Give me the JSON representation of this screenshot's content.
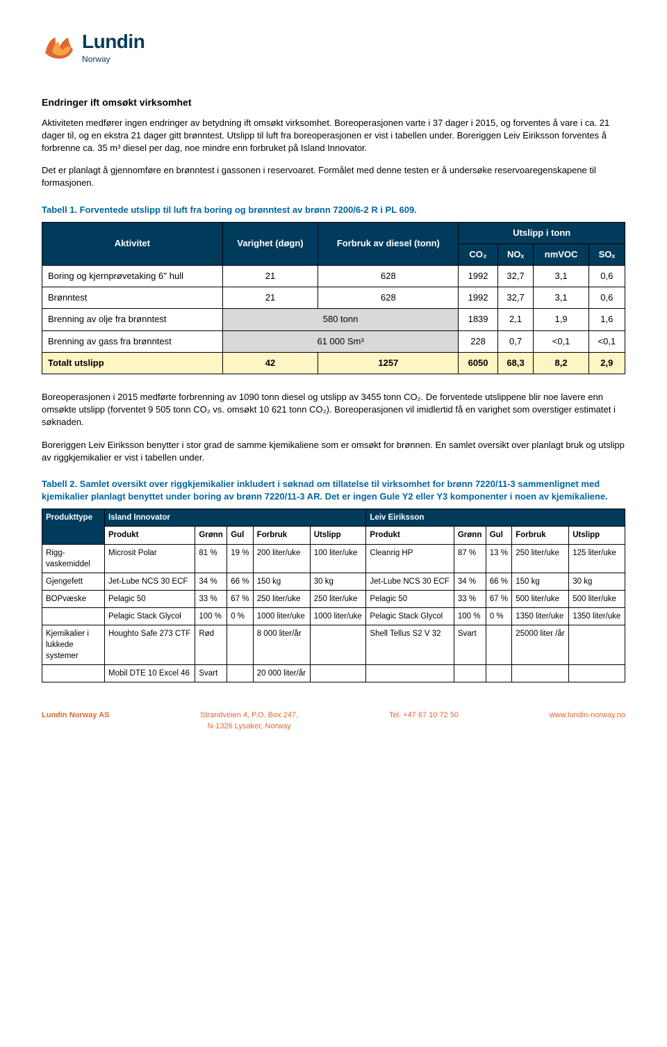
{
  "logo": {
    "main": "Lundin",
    "sub": "Norway"
  },
  "heading1": "Endringer ift omsøkt virksomhet",
  "para1": "Aktiviteten medfører ingen endringer av betydning ift omsøkt virksomhet. Boreoperasjonen varte i 37 dager i 2015, og forventes å vare i ca. 21 dager til, og en ekstra 21 dager gitt brønntest. Utslipp til luft fra boreoperasjonen er vist i tabellen under. Boreriggen Leiv Eiriksson forventes å forbrenne ca. 35 m³ diesel per dag, noe mindre enn forbruket på Island Innovator.",
  "para2": "Det er planlagt å gjennomføre en brønntest i gassonen i reservoaret. Formålet med denne testen er å undersøke reservoaregenskapene til formasjonen.",
  "tab1_caption": "Tabell 1. Forventede utslipp til luft fra boring og brønntest av brønn 7200/6-2 R i PL 609.",
  "t1": {
    "h_activity": "Aktivitet",
    "h_duration": "Varighet (døgn)",
    "h_diesel": "Forbruk av diesel (tonn)",
    "h_emis": "Utslipp i tonn",
    "h_co2": "CO₂",
    "h_nox": "NOₓ",
    "h_nmvoc": "nmVOC",
    "h_sox": "SOₓ",
    "r1": [
      "Boring og kjernprøvetaking 6'' hull",
      "21",
      "628",
      "1992",
      "32,7",
      "3,1",
      "0,6"
    ],
    "r2": [
      "Brønntest",
      "21",
      "628",
      "1992",
      "32,7",
      "3,1",
      "0,6"
    ],
    "r3": [
      "Brenning av olje fra brønntest",
      "580 tonn",
      "1839",
      "2,1",
      "1,9",
      "1,6"
    ],
    "r4": [
      "Brenning av gass fra brønntest",
      "61 000 Sm³",
      "228",
      "0,7",
      "<0,1",
      "<0,1"
    ],
    "r5": [
      "Totalt utslipp",
      "42",
      "1257",
      "6050",
      "68,3",
      "8,2",
      "2,9"
    ]
  },
  "para3": "Boreoperasjonen i 2015 medførte forbrenning av 1090 tonn diesel og utslipp av 3455 tonn CO₂. De forventede utslippene blir noe lavere enn omsøkte utslipp (forventet 9 505 tonn CO₂ vs. omsøkt 10 621 tonn CO₂). Boreoperasjonen vil imidlertid få en varighet som overstiger estimatet i søknaden.",
  "para4": "Boreriggen Leiv Eiriksson benytter i stor grad de samme kjemikaliene som er omsøkt for brønnen. En samlet oversikt over planlagt bruk og utslipp av riggkjemikalier er vist i tabellen under.",
  "tab2_caption": "Tabell 2. Samlet oversikt over riggkjemikalier inkludert i søknad om tillatelse til virksomhet for brønn 7220/11-3 sammenlignet med kjemikalier planlagt benyttet under boring av brønn 7220/11-3 AR. Det er ingen Gule Y2 eller Y3 komponenter i noen av kjemikaliene.",
  "t2": {
    "h_type": "Produkttype",
    "h_ii": "Island Innovator",
    "h_le": "Leiv Eiriksson",
    "sub": [
      "Produkt",
      "Grønn",
      "Gul",
      "Forbruk",
      "Utslipp",
      "Produkt",
      "Grønn",
      "Gul",
      "Forbruk",
      "Utslipp"
    ],
    "rows": [
      {
        "type": "Rigg-vaskemiddel",
        "c": [
          "Microsit Polar",
          "81 %",
          "19 %",
          "200 liter/uke",
          "100 liter/uke",
          "Cleanrig HP",
          "87 %",
          "13 %",
          "250 liter/uke",
          "125 liter/uke"
        ]
      },
      {
        "type": "Gjengefett",
        "c": [
          "Jet-Lube NCS 30 ECF",
          "34 %",
          "66 %",
          "150 kg",
          "30 kg",
          "Jet-Lube NCS 30 ECF",
          "34 %",
          "66 %",
          "150 kg",
          "30 kg"
        ]
      },
      {
        "type": "BOPvæske",
        "c": [
          "Pelagic 50",
          "33 %",
          "67 %",
          "250 liter/uke",
          "250 liter/uke",
          "Pelagic 50",
          "33 %",
          "67 %",
          "500 liter/uke",
          "500 liter/uke"
        ]
      },
      {
        "type": "",
        "c": [
          "Pelagic Stack Glycol",
          "100 %",
          "0 %",
          "1000 liter/uke",
          "1000 liter/uke",
          "Pelagic Stack Glycol",
          "100 %",
          "0 %",
          "1350 liter/uke",
          "1350 liter/uke"
        ]
      },
      {
        "type": "Kjemikalier i lukkede systemer",
        "c": [
          "Houghto Safe 273 CTF",
          "Rød",
          "",
          "8 000 liter/år",
          "",
          "Shell Tellus S2 V 32",
          "Svart",
          "",
          "25000 liter /år",
          ""
        ]
      },
      {
        "type": "",
        "c": [
          "Mobil DTE 10 Excel 46",
          "Svart",
          "",
          "20 000 liter/år",
          "",
          "",
          "",
          "",
          "",
          ""
        ]
      }
    ]
  },
  "footer": {
    "left": "Lundin Norway AS",
    "center": "Strandveien 4, P.O. Box 247,\nN-1326 Lysaker, Norway",
    "phone": "Tel.  +47 67 10 72 50",
    "url": "www.lundin-norway.no"
  },
  "colors": {
    "navy": "#003b5c",
    "caption_blue": "#0066a1",
    "highlight": "#fff4c4",
    "shade": "#d9d9d9",
    "footer": "#e06633"
  }
}
